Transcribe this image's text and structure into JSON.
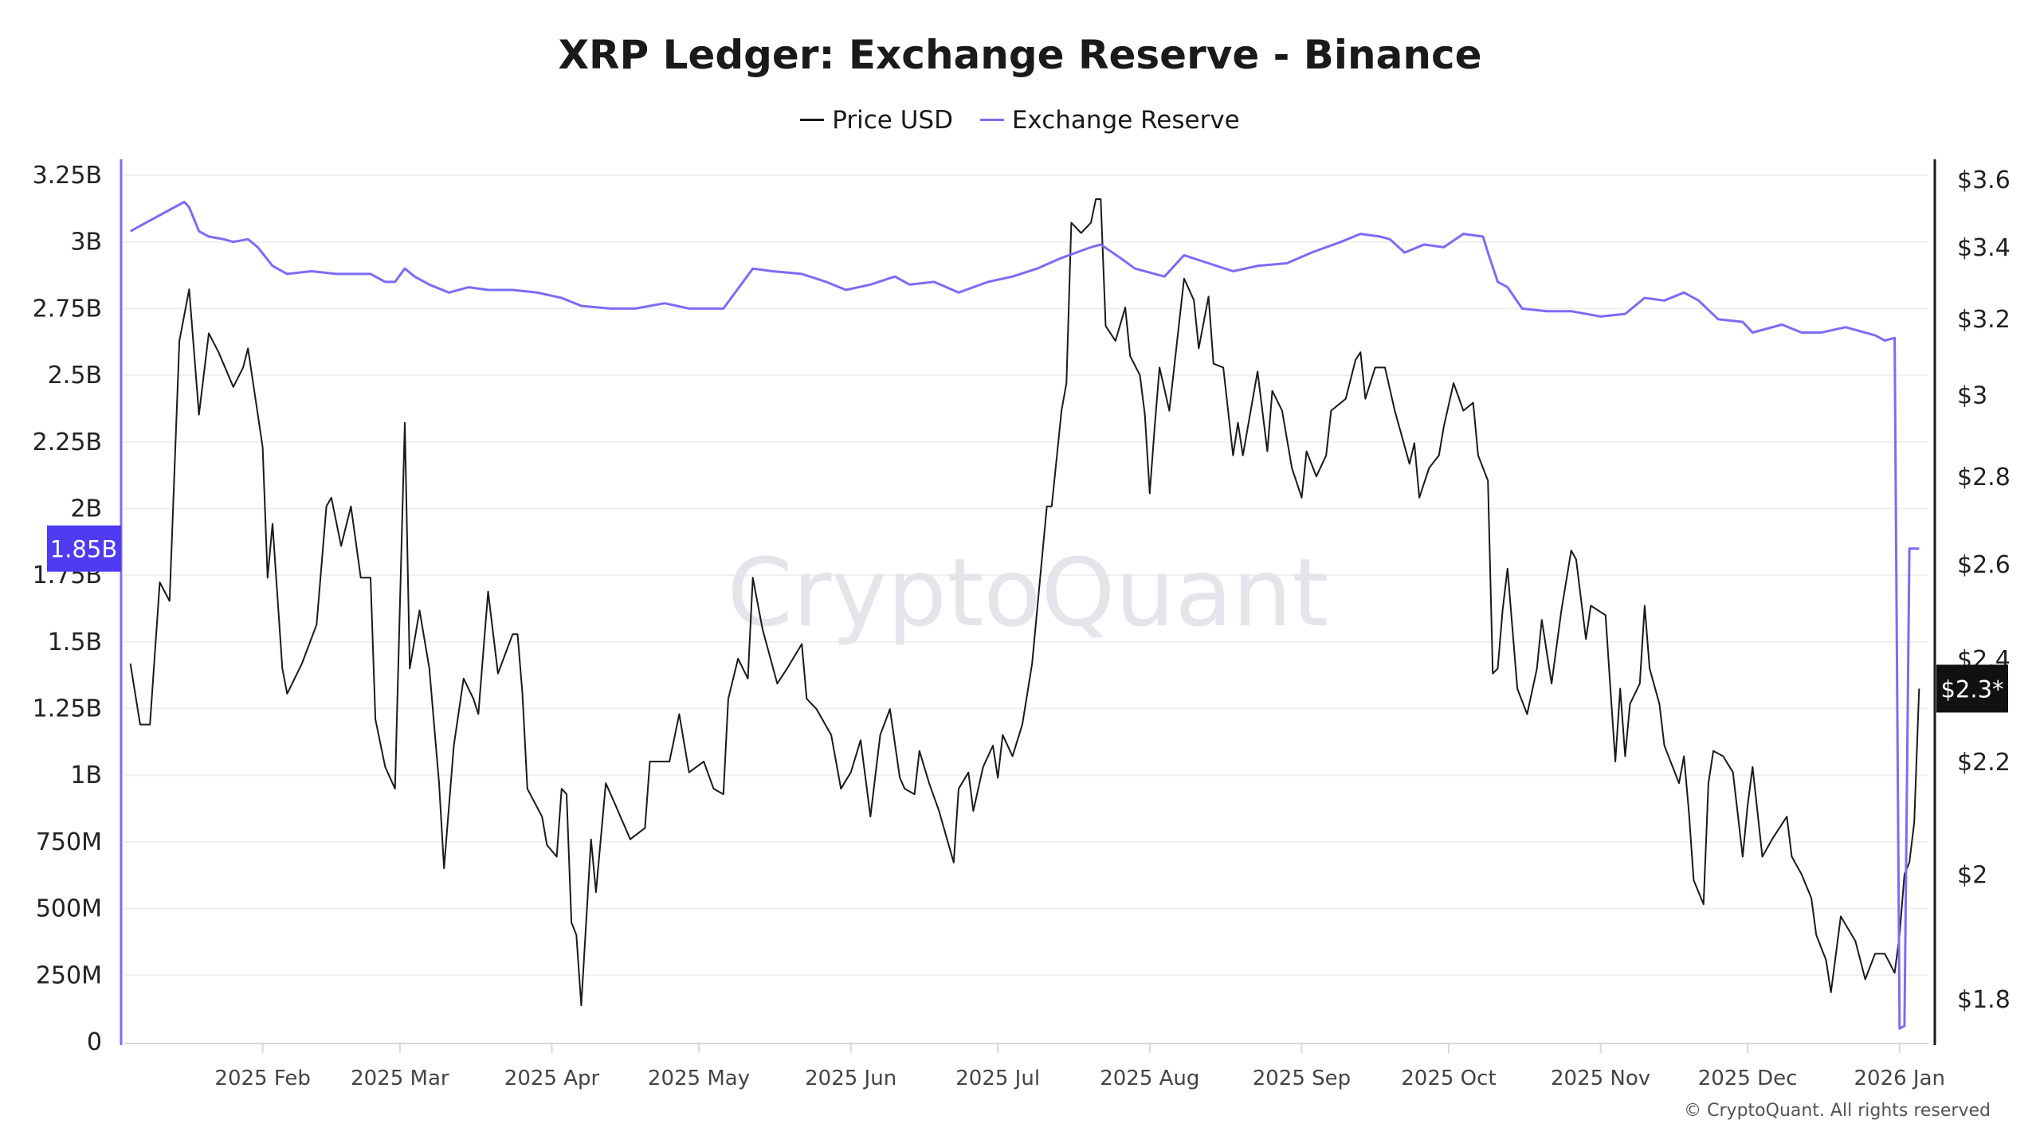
{
  "title": "XRP Ledger: Exchange Reserve - Binance",
  "copyright": "© CryptoQuant. All rights reserved",
  "watermark": "CryptoQuant",
  "chart_data": {
    "type": "line",
    "title": "XRP Ledger: Exchange Reserve - Binance",
    "legend_position": "top-center",
    "grid": true,
    "x_ticks": [
      "2025 Feb",
      "2025 Mar",
      "2025 Apr",
      "2025 May",
      "2025 Jun",
      "2025 Jul",
      "2025 Aug",
      "2025 Sep",
      "2025 Oct",
      "2025 Nov",
      "2025 Dec",
      "2026 Jan"
    ],
    "x_tick_dates": [
      "2025-02-01",
      "2025-03-01",
      "2025-04-01",
      "2025-05-01",
      "2025-06-01",
      "2025-07-01",
      "2025-08-01",
      "2025-09-01",
      "2025-10-01",
      "2025-11-01",
      "2025-12-01",
      "2026-01-01"
    ],
    "x_range": [
      "2025-01-01",
      "2026-01-07"
    ],
    "left_axis": {
      "scale": "linear",
      "range": [
        0,
        3250000000
      ],
      "ticks": [
        "0",
        "250M",
        "500M",
        "750M",
        "1B",
        "1.25B",
        "1.5B",
        "1.75B",
        "2B",
        "2.25B",
        "2.5B",
        "2.75B",
        "3B",
        "3.25B"
      ],
      "tick_values": [
        0,
        250000000,
        500000000,
        750000000,
        1000000000,
        1250000000,
        1500000000,
        1750000000,
        2000000000,
        2250000000,
        2500000000,
        2750000000,
        3000000000,
        3250000000
      ]
    },
    "right_axis": {
      "scale": "log",
      "range": [
        1.8,
        3.6
      ],
      "ticks": [
        "$1.8",
        "$2",
        "$2.2",
        "$2.4",
        "$2.6",
        "$2.8",
        "$3",
        "$3.2",
        "$3.4",
        "$3.6"
      ],
      "tick_values": [
        1.8,
        2,
        2.2,
        2.4,
        2.6,
        2.8,
        3,
        3.2,
        3.4,
        3.6
      ]
    },
    "current_labels": {
      "reserve": "1.85B",
      "price": "$2.3*"
    },
    "series": [
      {
        "name": "Price USD",
        "axis": "right",
        "color": "#1a1a1a",
        "unit": "USD",
        "x": [
          "2025-01-05",
          "2025-01-07",
          "2025-01-09",
          "2025-01-11",
          "2025-01-13",
          "2025-01-15",
          "2025-01-17",
          "2025-01-19",
          "2025-01-21",
          "2025-01-23",
          "2025-01-26",
          "2025-01-28",
          "2025-01-29",
          "2025-02-01",
          "2025-02-02",
          "2025-02-03",
          "2025-02-05",
          "2025-02-06",
          "2025-02-09",
          "2025-02-12",
          "2025-02-14",
          "2025-02-15",
          "2025-02-17",
          "2025-02-19",
          "2025-02-21",
          "2025-02-23",
          "2025-02-24",
          "2025-02-26",
          "2025-02-28",
          "2025-03-02",
          "2025-03-03",
          "2025-03-05",
          "2025-03-07",
          "2025-03-09",
          "2025-03-10",
          "2025-03-12",
          "2025-03-14",
          "2025-03-16",
          "2025-03-17",
          "2025-03-19",
          "2025-03-21",
          "2025-03-24",
          "2025-03-25",
          "2025-03-26",
          "2025-03-27",
          "2025-03-30",
          "2025-03-31",
          "2025-04-02",
          "2025-04-03",
          "2025-04-04",
          "2025-04-05",
          "2025-04-06",
          "2025-04-07",
          "2025-04-09",
          "2025-04-10",
          "2025-04-12",
          "2025-04-14",
          "2025-04-17",
          "2025-04-20",
          "2025-04-21",
          "2025-04-23",
          "2025-04-25",
          "2025-04-27",
          "2025-04-29",
          "2025-05-02",
          "2025-05-04",
          "2025-05-06",
          "2025-05-07",
          "2025-05-09",
          "2025-05-11",
          "2025-05-12",
          "2025-05-14",
          "2025-05-17",
          "2025-05-19",
          "2025-05-22",
          "2025-05-23",
          "2025-05-25",
          "2025-05-28",
          "2025-05-30",
          "2025-06-01",
          "2025-06-03",
          "2025-06-05",
          "2025-06-07",
          "2025-06-09",
          "2025-06-11",
          "2025-06-12",
          "2025-06-14",
          "2025-06-15",
          "2025-06-17",
          "2025-06-19",
          "2025-06-22",
          "2025-06-23",
          "2025-06-25",
          "2025-06-26",
          "2025-06-28",
          "2025-06-30",
          "2025-07-01",
          "2025-07-02",
          "2025-07-04",
          "2025-07-06",
          "2025-07-08",
          "2025-07-11",
          "2025-07-12",
          "2025-07-14",
          "2025-07-15",
          "2025-07-16",
          "2025-07-18",
          "2025-07-20",
          "2025-07-21",
          "2025-07-22",
          "2025-07-23",
          "2025-07-25",
          "2025-07-27",
          "2025-07-28",
          "2025-07-30",
          "2025-07-31",
          "2025-08-01",
          "2025-08-02",
          "2025-08-03",
          "2025-08-05",
          "2025-08-08",
          "2025-08-10",
          "2025-08-11",
          "2025-08-13",
          "2025-08-14",
          "2025-08-16",
          "2025-08-18",
          "2025-08-19",
          "2025-08-20",
          "2025-08-23",
          "2025-08-25",
          "2025-08-26",
          "2025-08-28",
          "2025-08-30",
          "2025-09-01",
          "2025-09-02",
          "2025-09-04",
          "2025-09-06",
          "2025-09-07",
          "2025-09-10",
          "2025-09-12",
          "2025-09-13",
          "2025-09-14",
          "2025-09-16",
          "2025-09-18",
          "2025-09-20",
          "2025-09-23",
          "2025-09-24",
          "2025-09-25",
          "2025-09-27",
          "2025-09-29",
          "2025-09-30",
          "2025-10-02",
          "2025-10-04",
          "2025-10-06",
          "2025-10-07",
          "2025-10-09",
          "2025-10-10",
          "2025-10-11",
          "2025-10-12",
          "2025-10-13",
          "2025-10-15",
          "2025-10-17",
          "2025-10-19",
          "2025-10-20",
          "2025-10-22",
          "2025-10-24",
          "2025-10-26",
          "2025-10-27",
          "2025-10-29",
          "2025-10-30",
          "2025-11-02",
          "2025-11-03",
          "2025-11-04",
          "2025-11-05",
          "2025-11-06",
          "2025-11-07",
          "2025-11-09",
          "2025-11-10",
          "2025-11-11",
          "2025-11-13",
          "2025-11-14",
          "2025-11-17",
          "2025-11-18",
          "2025-11-19",
          "2025-11-20",
          "2025-11-22",
          "2025-11-23",
          "2025-11-24",
          "2025-11-26",
          "2025-11-28",
          "2025-11-30",
          "2025-12-01",
          "2025-12-02",
          "2025-12-04",
          "2025-12-06",
          "2025-12-09",
          "2025-12-10",
          "2025-12-12",
          "2025-12-14",
          "2025-12-15",
          "2025-12-17",
          "2025-12-18",
          "2025-12-20",
          "2025-12-23",
          "2025-12-25",
          "2025-12-27",
          "2025-12-29",
          "2025-12-31",
          "2026-01-01",
          "2026-01-02",
          "2026-01-03",
          "2026-01-04",
          "2026-01-05"
        ],
        "values": [
          2.39,
          2.27,
          2.27,
          2.56,
          2.52,
          3.14,
          3.28,
          2.95,
          3.16,
          3.11,
          3.02,
          3.07,
          3.12,
          2.87,
          2.57,
          2.69,
          2.38,
          2.33,
          2.39,
          2.47,
          2.73,
          2.75,
          2.64,
          2.73,
          2.57,
          2.57,
          2.28,
          2.19,
          2.15,
          2.93,
          2.38,
          2.5,
          2.38,
          2.16,
          2.01,
          2.23,
          2.36,
          2.32,
          2.29,
          2.54,
          2.37,
          2.45,
          2.45,
          2.33,
          2.15,
          2.1,
          2.05,
          2.03,
          2.15,
          2.14,
          1.92,
          1.9,
          1.79,
          2.06,
          1.97,
          2.16,
          2.12,
          2.06,
          2.08,
          2.2,
          2.2,
          2.2,
          2.29,
          2.18,
          2.2,
          2.15,
          2.14,
          2.32,
          2.4,
          2.36,
          2.57,
          2.46,
          2.35,
          2.38,
          2.43,
          2.32,
          2.3,
          2.25,
          2.15,
          2.18,
          2.24,
          2.1,
          2.25,
          2.3,
          2.17,
          2.15,
          2.14,
          2.22,
          2.16,
          2.11,
          2.02,
          2.15,
          2.18,
          2.11,
          2.19,
          2.23,
          2.17,
          2.25,
          2.21,
          2.27,
          2.39,
          2.73,
          2.73,
          2.96,
          3.03,
          3.47,
          3.44,
          3.47,
          3.54,
          3.54,
          3.18,
          3.14,
          3.23,
          3.1,
          3.05,
          2.95,
          2.76,
          2.92,
          3.07,
          2.96,
          3.31,
          3.25,
          3.12,
          3.26,
          3.08,
          3.07,
          2.85,
          2.93,
          2.85,
          3.06,
          2.86,
          3.01,
          2.96,
          2.82,
          2.75,
          2.86,
          2.8,
          2.85,
          2.96,
          2.99,
          3.09,
          3.11,
          2.99,
          3.07,
          3.07,
          2.96,
          2.83,
          2.88,
          2.75,
          2.82,
          2.85,
          2.92,
          3.03,
          2.96,
          2.98,
          2.85,
          2.79,
          2.37,
          2.38,
          2.5,
          2.59,
          2.34,
          2.29,
          2.38,
          2.48,
          2.35,
          2.5,
          2.63,
          2.61,
          2.44,
          2.51,
          2.49,
          2.34,
          2.2,
          2.34,
          2.21,
          2.31,
          2.35,
          2.51,
          2.38,
          2.31,
          2.23,
          2.16,
          2.21,
          2.11,
          1.99,
          1.95,
          2.16,
          2.22,
          2.21,
          2.18,
          2.03,
          2.12,
          2.19,
          2.03,
          2.06,
          2.1,
          2.03,
          2.0,
          1.96,
          1.9,
          1.86,
          1.81,
          1.93,
          1.89,
          1.83,
          1.87,
          1.87,
          1.84,
          1.9,
          2.0,
          2.02,
          2.09,
          2.34
        ]
      },
      {
        "name": "Exchange Reserve",
        "axis": "left",
        "color": "#7b6cf6",
        "unit": "XRP",
        "x": [
          "2025-01-05",
          "2025-01-07",
          "2025-01-10",
          "2025-01-13",
          "2025-01-16",
          "2025-01-17",
          "2025-01-19",
          "2025-01-21",
          "2025-01-24",
          "2025-01-26",
          "2025-01-29",
          "2025-01-31",
          "2025-02-03",
          "2025-02-06",
          "2025-02-11",
          "2025-02-16",
          "2025-02-23",
          "2025-02-26",
          "2025-02-28",
          "2025-03-02",
          "2025-03-04",
          "2025-03-07",
          "2025-03-11",
          "2025-03-15",
          "2025-03-19",
          "2025-03-24",
          "2025-03-29",
          "2025-04-03",
          "2025-04-07",
          "2025-04-13",
          "2025-04-18",
          "2025-04-24",
          "2025-04-29",
          "2025-05-06",
          "2025-05-08",
          "2025-05-12",
          "2025-05-16",
          "2025-05-22",
          "2025-05-27",
          "2025-05-31",
          "2025-06-05",
          "2025-06-10",
          "2025-06-13",
          "2025-06-18",
          "2025-06-23",
          "2025-06-29",
          "2025-07-04",
          "2025-07-09",
          "2025-07-14",
          "2025-07-20",
          "2025-07-22",
          "2025-07-26",
          "2025-07-29",
          "2025-08-04",
          "2025-08-08",
          "2025-08-13",
          "2025-08-18",
          "2025-08-23",
          "2025-08-29",
          "2025-09-03",
          "2025-09-09",
          "2025-09-13",
          "2025-09-17",
          "2025-09-19",
          "2025-09-22",
          "2025-09-26",
          "2025-09-30",
          "2025-10-04",
          "2025-10-08",
          "2025-10-09",
          "2025-10-11",
          "2025-10-13",
          "2025-10-16",
          "2025-10-21",
          "2025-10-26",
          "2025-11-01",
          "2025-11-06",
          "2025-11-10",
          "2025-11-14",
          "2025-11-18",
          "2025-11-21",
          "2025-11-25",
          "2025-11-30",
          "2025-12-02",
          "2025-12-08",
          "2025-12-12",
          "2025-12-16",
          "2025-12-21",
          "2025-12-27",
          "2025-12-29",
          "2025-12-31",
          "2026-01-01",
          "2026-01-02",
          "2026-01-03",
          "2026-01-05"
        ],
        "values": [
          3040000000.0,
          3060000000.0,
          3090000000.0,
          3120000000.0,
          3150000000.0,
          3130000000.0,
          3040000000.0,
          3020000000.0,
          3010000000.0,
          3000000000.0,
          3010000000.0,
          2980000000.0,
          2910000000.0,
          2880000000.0,
          2890000000.0,
          2880000000.0,
          2880000000.0,
          2850000000.0,
          2850000000.0,
          2900000000.0,
          2870000000.0,
          2840000000.0,
          2810000000.0,
          2830000000.0,
          2820000000.0,
          2820000000.0,
          2810000000.0,
          2790000000.0,
          2760000000.0,
          2750000000.0,
          2750000000.0,
          2770000000.0,
          2750000000.0,
          2750000000.0,
          2800000000.0,
          2900000000.0,
          2890000000.0,
          2880000000.0,
          2850000000.0,
          2820000000.0,
          2840000000.0,
          2870000000.0,
          2840000000.0,
          2850000000.0,
          2810000000.0,
          2850000000.0,
          2870000000.0,
          2900000000.0,
          2940000000.0,
          2980000000.0,
          2990000000.0,
          2940000000.0,
          2900000000.0,
          2870000000.0,
          2950000000.0,
          2920000000.0,
          2890000000.0,
          2910000000.0,
          2920000000.0,
          2960000000.0,
          3000000000.0,
          3030000000.0,
          3020000000.0,
          3010000000.0,
          2960000000.0,
          2990000000.0,
          2980000000.0,
          3030000000.0,
          3020000000.0,
          2960000000.0,
          2850000000.0,
          2830000000.0,
          2750000000.0,
          2740000000.0,
          2740000000.0,
          2720000000.0,
          2730000000.0,
          2790000000.0,
          2780000000.0,
          2810000000.0,
          2780000000.0,
          2710000000.0,
          2700000000.0,
          2660000000.0,
          2690000000.0,
          2660000000.0,
          2660000000.0,
          2680000000.0,
          2650000000.0,
          2630000000.0,
          2640000000.0,
          50000000.0,
          60000000.0,
          1850000000.0,
          1850000000.0
        ]
      }
    ]
  }
}
